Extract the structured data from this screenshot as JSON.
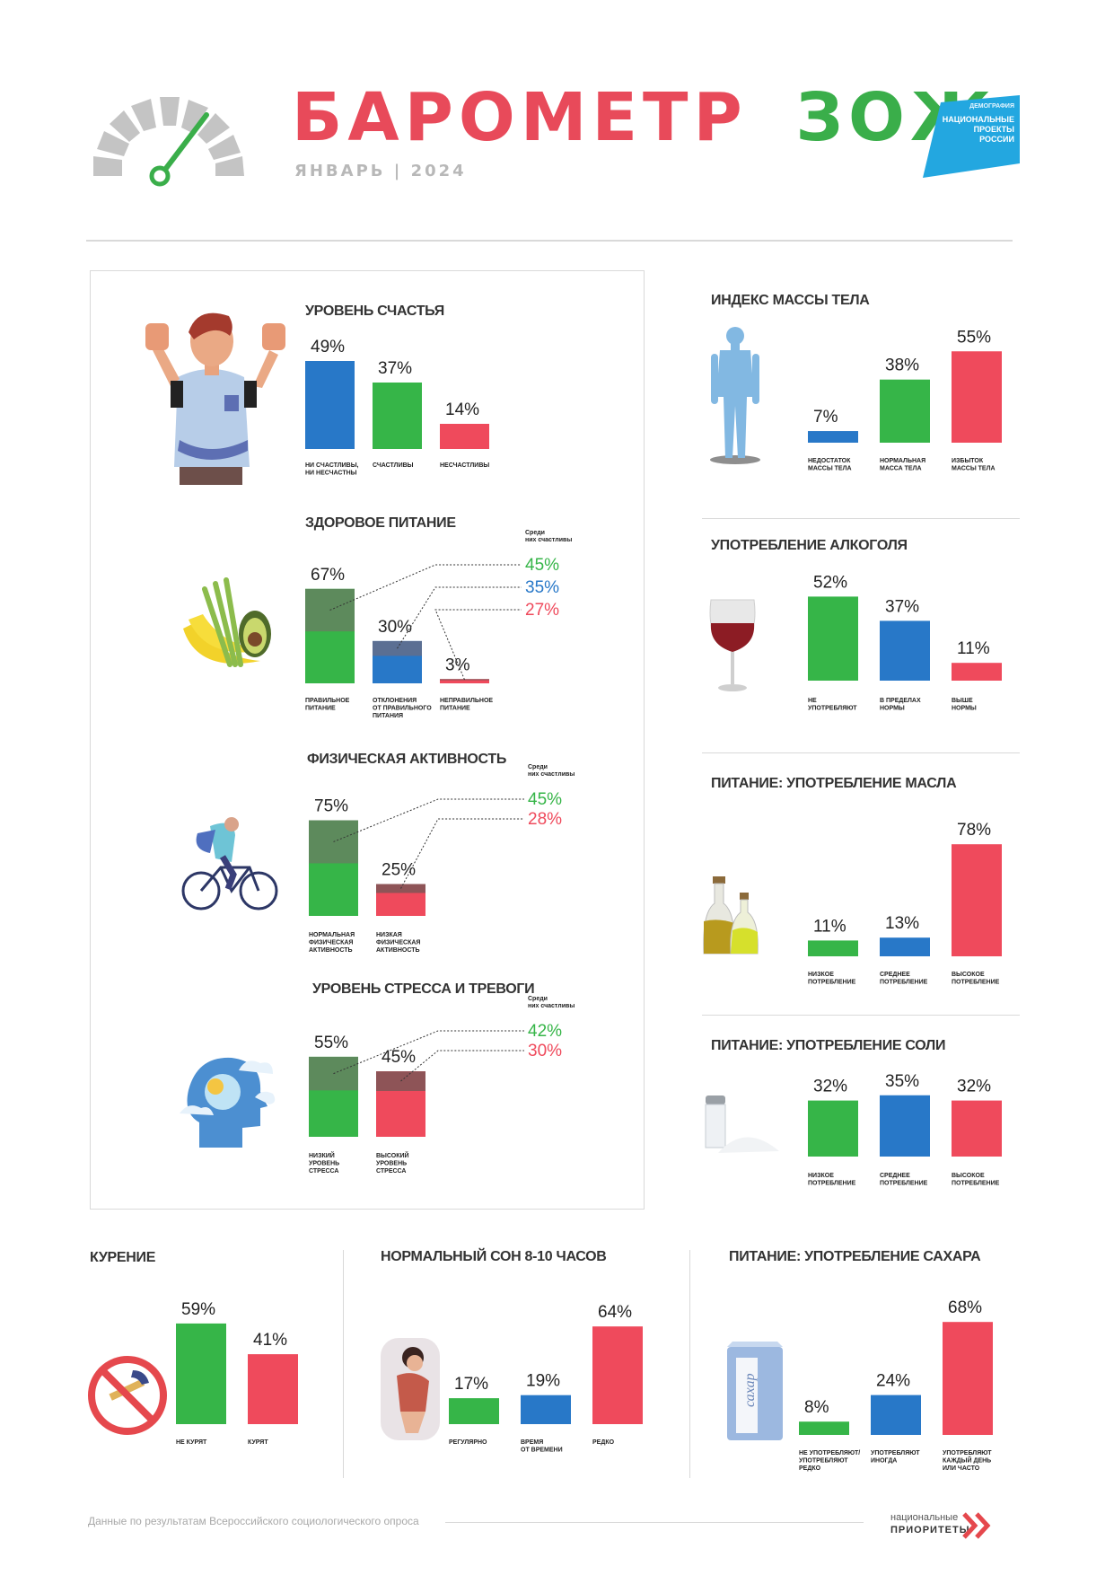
{
  "header": {
    "title_part1": "БАРОМЕТР",
    "title_part2": "ЗОЖ",
    "subtitle": "ЯНВАРЬ | 2024",
    "logo": {
      "line1": "ДЕМОГРАФИЯ",
      "line2": "НАЦИОНАЛЬНЫЕ",
      "line3": "ПРОЕКТЫ",
      "line4": "РОССИИ"
    }
  },
  "colors": {
    "blue": "#2878c8",
    "green": "#36b548",
    "red": "#ef4a5c",
    "dark_green": "#5d8a5c",
    "dark_blue": "#5b6f93",
    "dark_red": "#8e5457"
  },
  "icons": [
    "speedometer-icon",
    "man-thumbs-up-icon",
    "fruit-vegetables-icon",
    "cyclist-icon",
    "head-clouds-icon",
    "human-body-icon",
    "wine-glass-icon",
    "oil-bottles-icon",
    "salt-shaker-icon",
    "no-smoking-icon",
    "sleeping-woman-icon",
    "sugar-pack-icon"
  ],
  "chart_data": [
    {
      "id": "happiness",
      "type": "bar",
      "title": "УРОВЕНЬ СЧАСТЬЯ",
      "categories": [
        [
          "НИ СЧАСТЛИВЫ,",
          "НИ НЕСЧАСТНЫ"
        ],
        [
          "СЧАСТЛИВЫ"
        ],
        [
          "НЕСЧАСТЛИВЫ"
        ]
      ],
      "values": [
        49,
        37,
        14
      ],
      "labels": [
        "49%",
        "37%",
        "14%"
      ],
      "colors": [
        "blue",
        "green",
        "red"
      ]
    },
    {
      "id": "nutrition",
      "type": "bar",
      "title": "ЗДОРОВОЕ ПИТАНИЕ",
      "categories": [
        [
          "ПРАВИЛЬНОЕ",
          "ПИТАНИЕ"
        ],
        [
          "ОТКЛОНЕНИЯ",
          "ОТ ПРАВИЛЬНОГО",
          "ПИТАНИЯ"
        ],
        [
          "НЕПРАВИЛЬНОЕ",
          "ПИТАНИЕ"
        ]
      ],
      "values": [
        67,
        30,
        3
      ],
      "labels": [
        "67%",
        "30%",
        "3%"
      ],
      "colors": [
        "green",
        "blue",
        "red"
      ],
      "happy_share": [
        45,
        35,
        27
      ],
      "happy_labels": [
        "45%",
        "35%",
        "27%"
      ],
      "callout_title": [
        "Среди",
        "них счастливы"
      ]
    },
    {
      "id": "activity",
      "type": "bar",
      "title": "ФИЗИЧЕСКАЯ АКТИВНОСТЬ",
      "categories": [
        [
          "НОРМАЛЬНАЯ",
          "ФИЗИЧЕСКАЯ",
          "АКТИВНОСТЬ"
        ],
        [
          "НИЗКАЯ",
          "ФИЗИЧЕСКАЯ",
          "АКТИВНОСТЬ"
        ]
      ],
      "values": [
        75,
        25
      ],
      "labels": [
        "75%",
        "25%"
      ],
      "colors": [
        "green",
        "red"
      ],
      "happy_share": [
        45,
        28
      ],
      "happy_labels": [
        "45%",
        "28%"
      ],
      "callout_title": [
        "Среди",
        "них счастливы"
      ]
    },
    {
      "id": "stress",
      "type": "bar",
      "title": "УРОВЕНЬ СТРЕССА И ТРЕВОГИ",
      "categories": [
        [
          "НИЗКИЙ",
          "УРОВЕНЬ",
          "СТРЕССА"
        ],
        [
          "ВЫСОКИЙ",
          "УРОВЕНЬ",
          "СТРЕССА"
        ]
      ],
      "values": [
        55,
        45
      ],
      "labels": [
        "55%",
        "45%"
      ],
      "colors": [
        "green",
        "red"
      ],
      "happy_share": [
        42,
        30
      ],
      "happy_labels": [
        "42%",
        "30%"
      ],
      "callout_title": [
        "Среди",
        "них счастливы"
      ]
    },
    {
      "id": "bmi",
      "type": "bar",
      "title": "ИНДЕКС МАССЫ ТЕЛА",
      "categories": [
        [
          "НЕДОСТАТОК",
          "МАССЫ ТЕЛА"
        ],
        [
          "НОРМАЛЬНАЯ",
          "МАССА ТЕЛА"
        ],
        [
          "ИЗБЫТОК",
          "МАССЫ ТЕЛА"
        ]
      ],
      "values": [
        7,
        38,
        55
      ],
      "labels": [
        "7%",
        "38%",
        "55%"
      ],
      "colors": [
        "blue",
        "green",
        "red"
      ]
    },
    {
      "id": "alcohol",
      "type": "bar",
      "title": "УПОТРЕБЛЕНИЕ АЛКОГОЛЯ",
      "categories": [
        [
          "НЕ",
          "УПОТРЕБЛЯЮТ"
        ],
        [
          "В ПРЕДЕЛАХ",
          "НОРМЫ"
        ],
        [
          "ВЫШЕ",
          "НОРМЫ"
        ]
      ],
      "values": [
        52,
        37,
        11
      ],
      "labels": [
        "52%",
        "37%",
        "11%"
      ],
      "colors": [
        "green",
        "blue",
        "red"
      ]
    },
    {
      "id": "oil",
      "type": "bar",
      "title": "ПИТАНИЕ: УПОТРЕБЛЕНИЕ МАСЛА",
      "categories": [
        [
          "НИЗКОЕ",
          "ПОТРЕБЛЕНИЕ"
        ],
        [
          "СРЕДНЕЕ",
          "ПОТРЕБЛЕНИЕ"
        ],
        [
          "ВЫСОКОЕ",
          "ПОТРЕБЛЕНИЕ"
        ]
      ],
      "values": [
        11,
        13,
        78
      ],
      "labels": [
        "11%",
        "13%",
        "78%"
      ],
      "colors": [
        "green",
        "blue",
        "red"
      ]
    },
    {
      "id": "salt",
      "type": "bar",
      "title": "ПИТАНИЕ: УПОТРЕБЛЕНИЕ СОЛИ",
      "categories": [
        [
          "НИЗКОЕ",
          "ПОТРЕБЛЕНИЕ"
        ],
        [
          "СРЕДНЕЕ",
          "ПОТРЕБЛЕНИЕ"
        ],
        [
          "ВЫСОКОЕ",
          "ПОТРЕБЛЕНИЕ"
        ]
      ],
      "values": [
        32,
        35,
        32
      ],
      "labels": [
        "32%",
        "35%",
        "32%"
      ],
      "colors": [
        "green",
        "blue",
        "red"
      ]
    },
    {
      "id": "smoking",
      "type": "bar",
      "title": "КУРЕНИЕ",
      "categories": [
        [
          "НЕ КУРЯТ"
        ],
        [
          "КУРЯТ"
        ]
      ],
      "values": [
        59,
        41
      ],
      "labels": [
        "59%",
        "41%"
      ],
      "colors": [
        "green",
        "red"
      ]
    },
    {
      "id": "sleep",
      "type": "bar",
      "title": "НОРМАЛЬНЫЙ СОН 8-10 ЧАСОВ",
      "categories": [
        [
          "РЕГУЛЯРНО"
        ],
        [
          "ВРЕМЯ",
          "ОТ ВРЕМЕНИ"
        ],
        [
          "РЕДКО"
        ]
      ],
      "values": [
        17,
        19,
        64
      ],
      "labels": [
        "17%",
        "19%",
        "64%"
      ],
      "colors": [
        "green",
        "blue",
        "red"
      ]
    },
    {
      "id": "sugar",
      "type": "bar",
      "title": "ПИТАНИЕ: УПОТРЕБЛЕНИЕ САХАРА",
      "categories": [
        [
          "НЕ УПОТРЕБЛЯЮТ/",
          "УПОТРЕБЛЯЮТ",
          "РЕДКО"
        ],
        [
          "УПОТРЕБЛЯЮТ",
          "ИНОГДА"
        ],
        [
          "УПОТРЕБЛЯЮТ",
          "КАЖДЫЙ ДЕНЬ",
          "ИЛИ ЧАСТО"
        ]
      ],
      "values": [
        8,
        24,
        68
      ],
      "labels": [
        "8%",
        "24%",
        "68%"
      ],
      "colors": [
        "green",
        "blue",
        "red"
      ]
    }
  ],
  "icon_text": {
    "sugar_pack": "сахар"
  },
  "footer": {
    "source": "Данные по результатам Всероссийского социологического опроса",
    "logo_line1": "национальные",
    "logo_line2": "ПРИОРИТЕТЫ"
  }
}
